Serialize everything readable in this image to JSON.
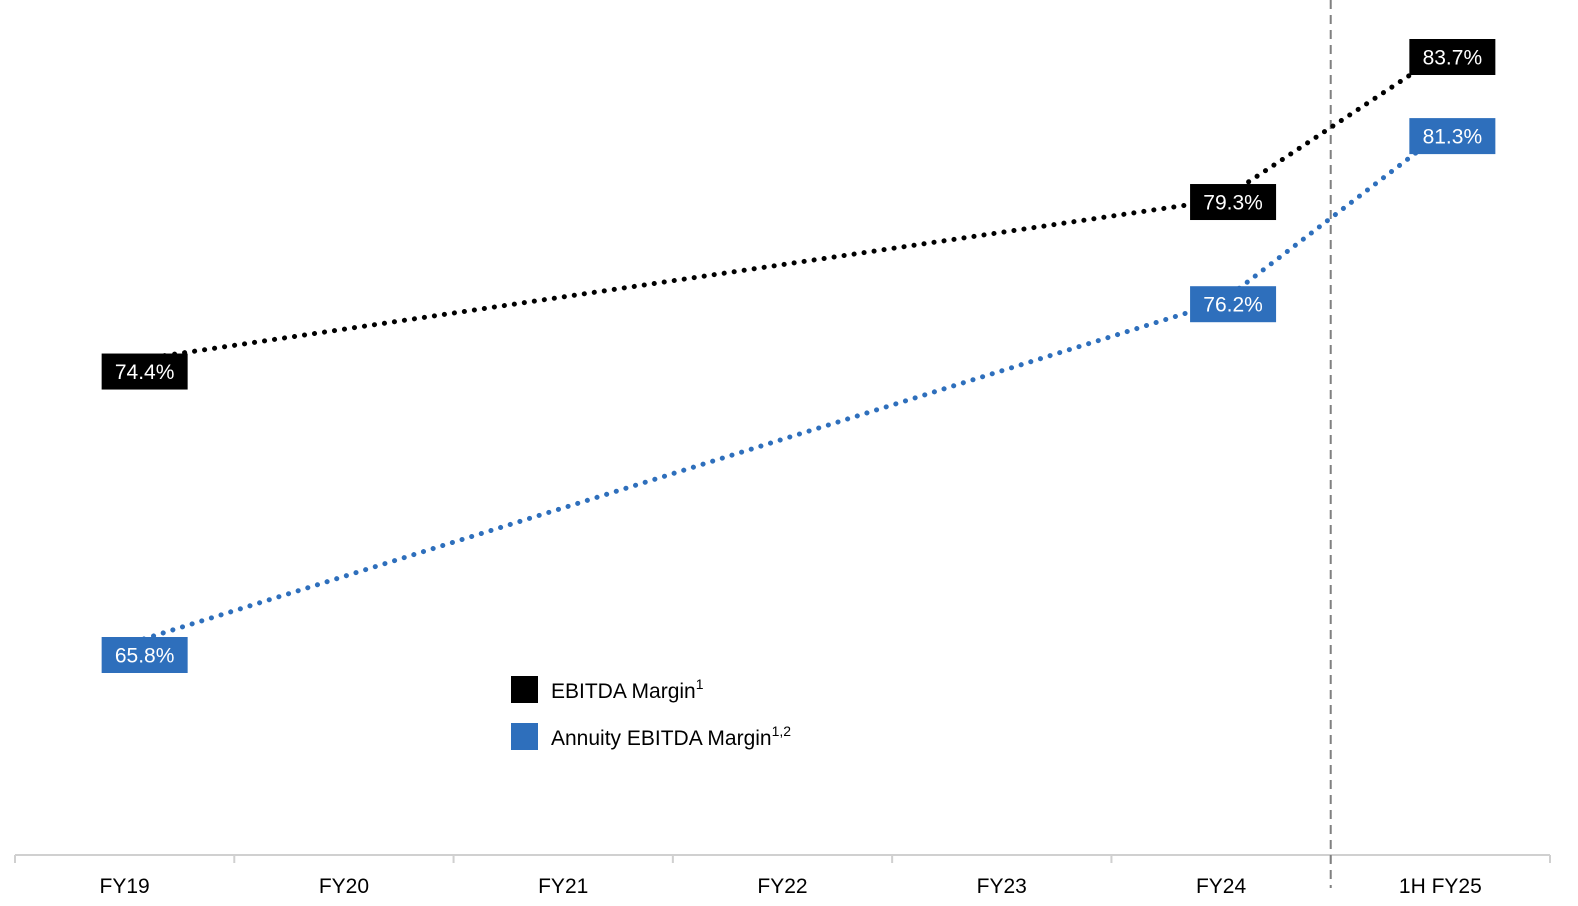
{
  "chart_data": {
    "type": "line",
    "categories": [
      "FY19",
      "FY20",
      "FY21",
      "FY22",
      "FY23",
      "FY24",
      "1H FY25"
    ],
    "series": [
      {
        "name": "EBITDA Margin",
        "superscript": "1",
        "color": "#000000",
        "values": [
          74.4,
          null,
          null,
          null,
          null,
          79.3,
          83.7
        ],
        "labels": [
          "74.4%",
          null,
          null,
          null,
          null,
          "79.3%",
          "83.7%"
        ]
      },
      {
        "name": "Annuity EBITDA Margin",
        "superscript": "1,2",
        "color": "#2e6fbc",
        "values": [
          65.8,
          null,
          null,
          null,
          null,
          76.2,
          81.3
        ],
        "labels": [
          "65.8%",
          null,
          null,
          null,
          null,
          "76.2%",
          "81.3%"
        ]
      }
    ],
    "line_style": "dotted",
    "ylim": [
      60,
      88
    ],
    "y_axis_visible": false,
    "grid": false,
    "divider_before_category": "1H FY25",
    "legend_position": "center-bottom"
  }
}
